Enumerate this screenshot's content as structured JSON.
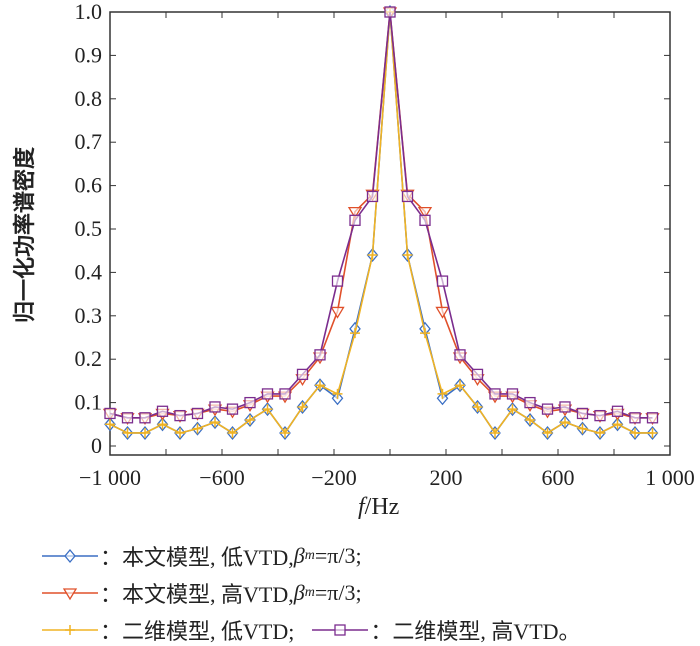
{
  "chart_data": {
    "type": "line",
    "xlabel_italic": "f",
    "xlabel_unit": "/Hz",
    "ylabel": "归一化功率谱密度",
    "xlim": [
      -1000,
      1000
    ],
    "ylim": [
      -0.02,
      1.0
    ],
    "xticks": [
      -1000,
      -600,
      -200,
      200,
      600,
      1000
    ],
    "xtick_labels": [
      "−1 000",
      "−600",
      "−200",
      "200",
      "600",
      "1 000"
    ],
    "yticks": [
      0,
      0.1,
      0.2,
      0.3,
      0.4,
      0.5,
      0.6,
      0.7,
      0.8,
      0.9,
      1.0
    ],
    "ytick_labels": [
      "0",
      "0.1",
      "0.2",
      "0.3",
      "0.4",
      "0.5",
      "0.6",
      "0.7",
      "0.8",
      "0.9",
      "1.0"
    ],
    "x": [
      -1000,
      -937.5,
      -875,
      -812.5,
      -750,
      -687.5,
      -625,
      -562.5,
      -500,
      -437.5,
      -375,
      -312.5,
      -250,
      -187.5,
      -125,
      -62.5,
      0,
      62.5,
      125,
      187.5,
      250,
      312.5,
      375,
      437.5,
      500,
      562.5,
      625,
      687.5,
      750,
      812.5,
      875,
      937.5
    ],
    "series": [
      {
        "name": "本文模型, 低VTD, βm=π/3",
        "color": "#3b6fc4",
        "marker": "diamond",
        "values": [
          0.05,
          0.03,
          0.03,
          0.05,
          0.03,
          0.04,
          0.055,
          0.03,
          0.06,
          0.085,
          0.03,
          0.09,
          0.14,
          0.11,
          0.27,
          0.44,
          1.0,
          0.44,
          0.27,
          0.11,
          0.14,
          0.09,
          0.03,
          0.085,
          0.06,
          0.03,
          0.055,
          0.04,
          0.03,
          0.05,
          0.03,
          0.03
        ]
      },
      {
        "name": "本文模型, 高VTD, βm=π/3",
        "color": "#e0502a",
        "marker": "triangle-down",
        "values": [
          0.075,
          0.065,
          0.065,
          0.075,
          0.07,
          0.075,
          0.085,
          0.08,
          0.095,
          0.115,
          0.115,
          0.155,
          0.205,
          0.31,
          0.54,
          0.58,
          1.0,
          0.58,
          0.54,
          0.31,
          0.205,
          0.155,
          0.115,
          0.115,
          0.095,
          0.08,
          0.085,
          0.075,
          0.07,
          0.075,
          0.065,
          0.065
        ]
      },
      {
        "name": "二维模型, 低VTD",
        "color": "#f0b323",
        "marker": "plus",
        "values": [
          0.05,
          0.03,
          0.03,
          0.05,
          0.03,
          0.04,
          0.055,
          0.03,
          0.06,
          0.085,
          0.03,
          0.09,
          0.14,
          0.12,
          0.26,
          0.44,
          1.0,
          0.44,
          0.26,
          0.12,
          0.14,
          0.09,
          0.03,
          0.085,
          0.06,
          0.03,
          0.055,
          0.04,
          0.03,
          0.05,
          0.03,
          0.03
        ]
      },
      {
        "name": "二维模型, 高VTD",
        "color": "#7b2d8e",
        "marker": "square",
        "values": [
          0.075,
          0.065,
          0.065,
          0.08,
          0.07,
          0.075,
          0.09,
          0.085,
          0.1,
          0.12,
          0.12,
          0.165,
          0.21,
          0.38,
          0.52,
          0.575,
          1.0,
          0.575,
          0.52,
          0.38,
          0.21,
          0.165,
          0.12,
          0.12,
          0.1,
          0.085,
          0.09,
          0.075,
          0.07,
          0.08,
          0.065,
          0.065
        ]
      }
    ],
    "legend": {
      "placement": "bottom",
      "items": [
        {
          "prefix": "：本文模型, 低VTD, ",
          "beta": "β",
          "sub": "m",
          "suffix": "=π/3;"
        },
        {
          "prefix": "：本文模型, 高VTD, ",
          "beta": "β",
          "sub": "m",
          "suffix": "=π/3;"
        },
        {
          "prefix": "：二维模型, 低VTD;",
          "beta": "",
          "sub": "",
          "suffix": ""
        },
        {
          "prefix": "：二维模型, 高VTD。",
          "beta": "",
          "sub": "",
          "suffix": ""
        }
      ]
    }
  }
}
